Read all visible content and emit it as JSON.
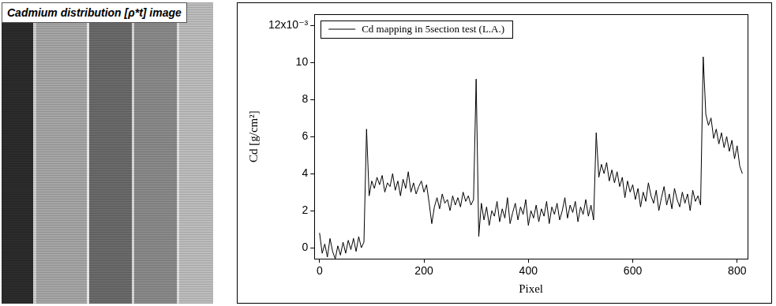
{
  "image_title": "Cadmium distribution [ρ*t] image",
  "chart_data": {
    "type": "line",
    "x_label": "Pixel",
    "y_label": "Cd [g/cm²]",
    "xlim": [
      -10,
      820
    ],
    "xticks": [
      0,
      200,
      400,
      600,
      800
    ],
    "ylim": [
      -0.6,
      12.6
    ],
    "yticks": [
      0,
      2,
      4,
      6,
      8,
      10,
      {
        "value": 12,
        "label": "12x10⁻³"
      }
    ],
    "grid": false,
    "legend": "upper left",
    "x": [
      0,
      5,
      10,
      15,
      20,
      25,
      30,
      35,
      40,
      45,
      50,
      55,
      60,
      65,
      70,
      75,
      80,
      85,
      90,
      95,
      100,
      105,
      110,
      115,
      120,
      125,
      130,
      135,
      140,
      145,
      150,
      155,
      160,
      165,
      170,
      175,
      180,
      185,
      190,
      195,
      200,
      205,
      210,
      215,
      220,
      225,
      230,
      235,
      240,
      245,
      250,
      255,
      260,
      265,
      270,
      275,
      280,
      285,
      290,
      295,
      300,
      305,
      310,
      315,
      320,
      325,
      330,
      335,
      340,
      345,
      350,
      355,
      360,
      365,
      370,
      375,
      380,
      385,
      390,
      395,
      400,
      405,
      410,
      415,
      420,
      425,
      430,
      435,
      440,
      445,
      450,
      455,
      460,
      465,
      470,
      475,
      480,
      485,
      490,
      495,
      500,
      505,
      510,
      515,
      520,
      525,
      530,
      535,
      540,
      545,
      550,
      555,
      560,
      565,
      570,
      575,
      580,
      585,
      590,
      595,
      600,
      605,
      610,
      615,
      620,
      625,
      630,
      635,
      640,
      645,
      650,
      655,
      660,
      665,
      670,
      675,
      680,
      685,
      690,
      695,
      700,
      705,
      710,
      715,
      720,
      725,
      730,
      735,
      740,
      745,
      750,
      755,
      760,
      765,
      770,
      775,
      780,
      785,
      790,
      795,
      800,
      805,
      810
    ],
    "series": [
      {
        "name": "Cd mapping in 5section test (L.A.)",
        "color": "#000000",
        "line_style": "solid",
        "values": [
          0.8,
          -0.3,
          0.2,
          -0.5,
          0.5,
          -0.2,
          -0.6,
          0.1,
          -0.4,
          0.3,
          -0.3,
          0.4,
          -0.1,
          0.5,
          -0.2,
          0.6,
          0.0,
          0.3,
          6.4,
          2.8,
          3.6,
          3.2,
          3.8,
          3.4,
          3.9,
          3.0,
          3.5,
          3.3,
          4.0,
          3.1,
          3.6,
          2.8,
          3.7,
          3.2,
          4.1,
          3.0,
          3.5,
          2.9,
          3.3,
          3.6,
          3.0,
          3.4,
          2.4,
          1.3,
          2.2,
          2.7,
          2.1,
          2.9,
          2.4,
          2.6,
          2.0,
          2.8,
          2.3,
          2.7,
          2.2,
          3.0,
          2.5,
          2.8,
          2.3,
          2.6,
          9.1,
          0.6,
          2.4,
          1.5,
          2.2,
          1.2,
          2.0,
          1.7,
          2.5,
          1.4,
          2.1,
          1.6,
          2.7,
          1.3,
          1.9,
          2.4,
          1.5,
          2.2,
          1.8,
          2.6,
          1.2,
          2.0,
          1.6,
          2.3,
          1.4,
          2.1,
          1.7,
          2.5,
          1.3,
          2.2,
          1.8,
          2.4,
          1.5,
          2.0,
          2.7,
          1.6,
          2.3,
          1.9,
          2.5,
          1.4,
          2.2,
          1.8,
          2.6,
          1.7,
          2.3,
          1.5,
          6.2,
          3.8,
          4.5,
          4.0,
          4.6,
          3.6,
          4.2,
          3.5,
          4.1,
          3.3,
          3.8,
          2.7,
          3.6,
          3.0,
          3.4,
          2.6,
          3.2,
          2.2,
          3.0,
          2.5,
          3.5,
          2.8,
          2.4,
          3.1,
          2.0,
          2.7,
          3.3,
          2.3,
          2.9,
          2.1,
          3.2,
          2.6,
          2.2,
          3.0,
          2.4,
          2.9,
          2.0,
          3.1,
          2.5,
          2.8,
          2.3,
          10.3,
          7.2,
          6.6,
          7.0,
          5.9,
          6.4,
          5.6,
          6.2,
          5.4,
          6.0,
          5.2,
          5.8,
          4.8,
          5.5,
          4.4,
          4.0
        ]
      }
    ]
  }
}
